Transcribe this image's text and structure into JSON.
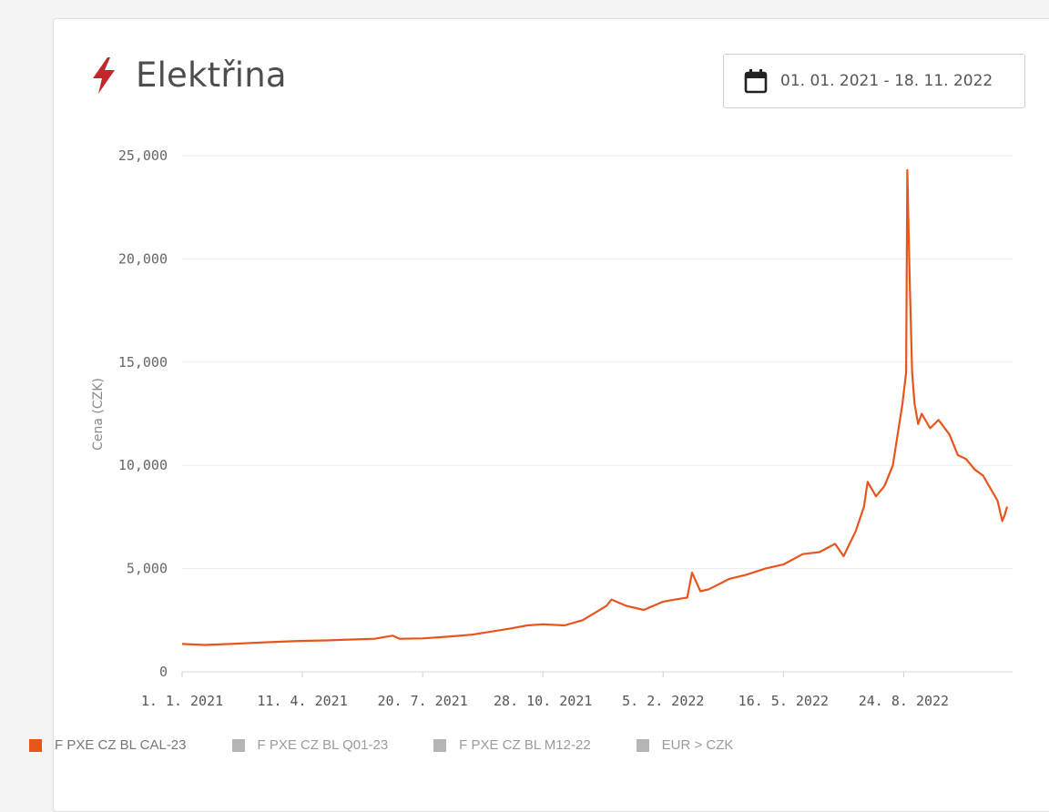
{
  "header": {
    "title": "Elektřina",
    "icon": "lightning-bolt-icon",
    "icon_color": "#c4262e",
    "date_range": "01. 01. 2021 - 18. 11. 2022",
    "date_icon": "calendar-icon"
  },
  "chart_data": {
    "type": "line",
    "title": "",
    "xlabel": "",
    "ylabel": "Cena (CZK)",
    "ylim": [
      0,
      25000
    ],
    "y_ticks": [
      "25,000",
      "20,000",
      "15,000",
      "10,000",
      "5,000",
      "0"
    ],
    "x_ticks": [
      "1. 1. 2021",
      "11. 4. 2021",
      "20. 7. 2021",
      "28. 10. 2021",
      "5. 2. 2022",
      "16. 5. 2022",
      "24. 8. 2022"
    ],
    "grid": true,
    "legend_position": "bottom",
    "series": [
      {
        "name": "F PXE CZ BL CAL-23",
        "color": "#e8551c",
        "x": [
          "2021-01-01",
          "2021-01-20",
          "2021-02-10",
          "2021-03-01",
          "2021-03-20",
          "2021-04-11",
          "2021-05-01",
          "2021-05-20",
          "2021-06-10",
          "2021-06-25",
          "2021-07-01",
          "2021-07-20",
          "2021-08-10",
          "2021-08-30",
          "2021-09-15",
          "2021-10-01",
          "2021-10-15",
          "2021-10-28",
          "2021-11-15",
          "2021-11-30",
          "2021-12-10",
          "2021-12-20",
          "2021-12-24",
          "2022-01-05",
          "2022-01-20",
          "2022-02-05",
          "2022-02-15",
          "2022-02-25",
          "2022-03-01",
          "2022-03-08",
          "2022-03-15",
          "2022-04-01",
          "2022-04-15",
          "2022-05-01",
          "2022-05-16",
          "2022-06-01",
          "2022-06-15",
          "2022-06-28",
          "2022-07-05",
          "2022-07-15",
          "2022-07-22",
          "2022-07-25",
          "2022-08-01",
          "2022-08-08",
          "2022-08-15",
          "2022-08-19",
          "2022-08-23",
          "2022-08-26",
          "2022-08-27",
          "2022-08-29",
          "2022-08-31",
          "2022-09-02",
          "2022-09-05",
          "2022-09-08",
          "2022-09-15",
          "2022-09-22",
          "2022-10-01",
          "2022-10-08",
          "2022-10-15",
          "2022-10-22",
          "2022-10-29",
          "2022-11-05",
          "2022-11-10",
          "2022-11-14",
          "2022-11-16",
          "2022-11-18"
        ],
        "values": [
          1350,
          1300,
          1350,
          1400,
          1450,
          1500,
          1520,
          1560,
          1600,
          1750,
          1600,
          1620,
          1700,
          1800,
          1950,
          2100,
          2250,
          2300,
          2250,
          2500,
          2850,
          3200,
          3500,
          3200,
          3000,
          3400,
          3500,
          3600,
          4800,
          3900,
          4000,
          4500,
          4700,
          5000,
          5200,
          5700,
          5800,
          6200,
          5600,
          6800,
          8000,
          9200,
          8500,
          9000,
          10000,
          11500,
          13000,
          14500,
          24300,
          19000,
          14500,
          13000,
          12000,
          12500,
          11800,
          12200,
          11500,
          10500,
          10300,
          9800,
          9500,
          8800,
          8300,
          7300,
          7600,
          8000
        ]
      },
      {
        "name": "F PXE CZ BL Q01-23",
        "color": "#b5b5b5"
      },
      {
        "name": "F PXE CZ BL M12-22",
        "color": "#b5b5b5"
      },
      {
        "name": "EUR > CZK",
        "color": "#b5b5b5"
      }
    ]
  }
}
